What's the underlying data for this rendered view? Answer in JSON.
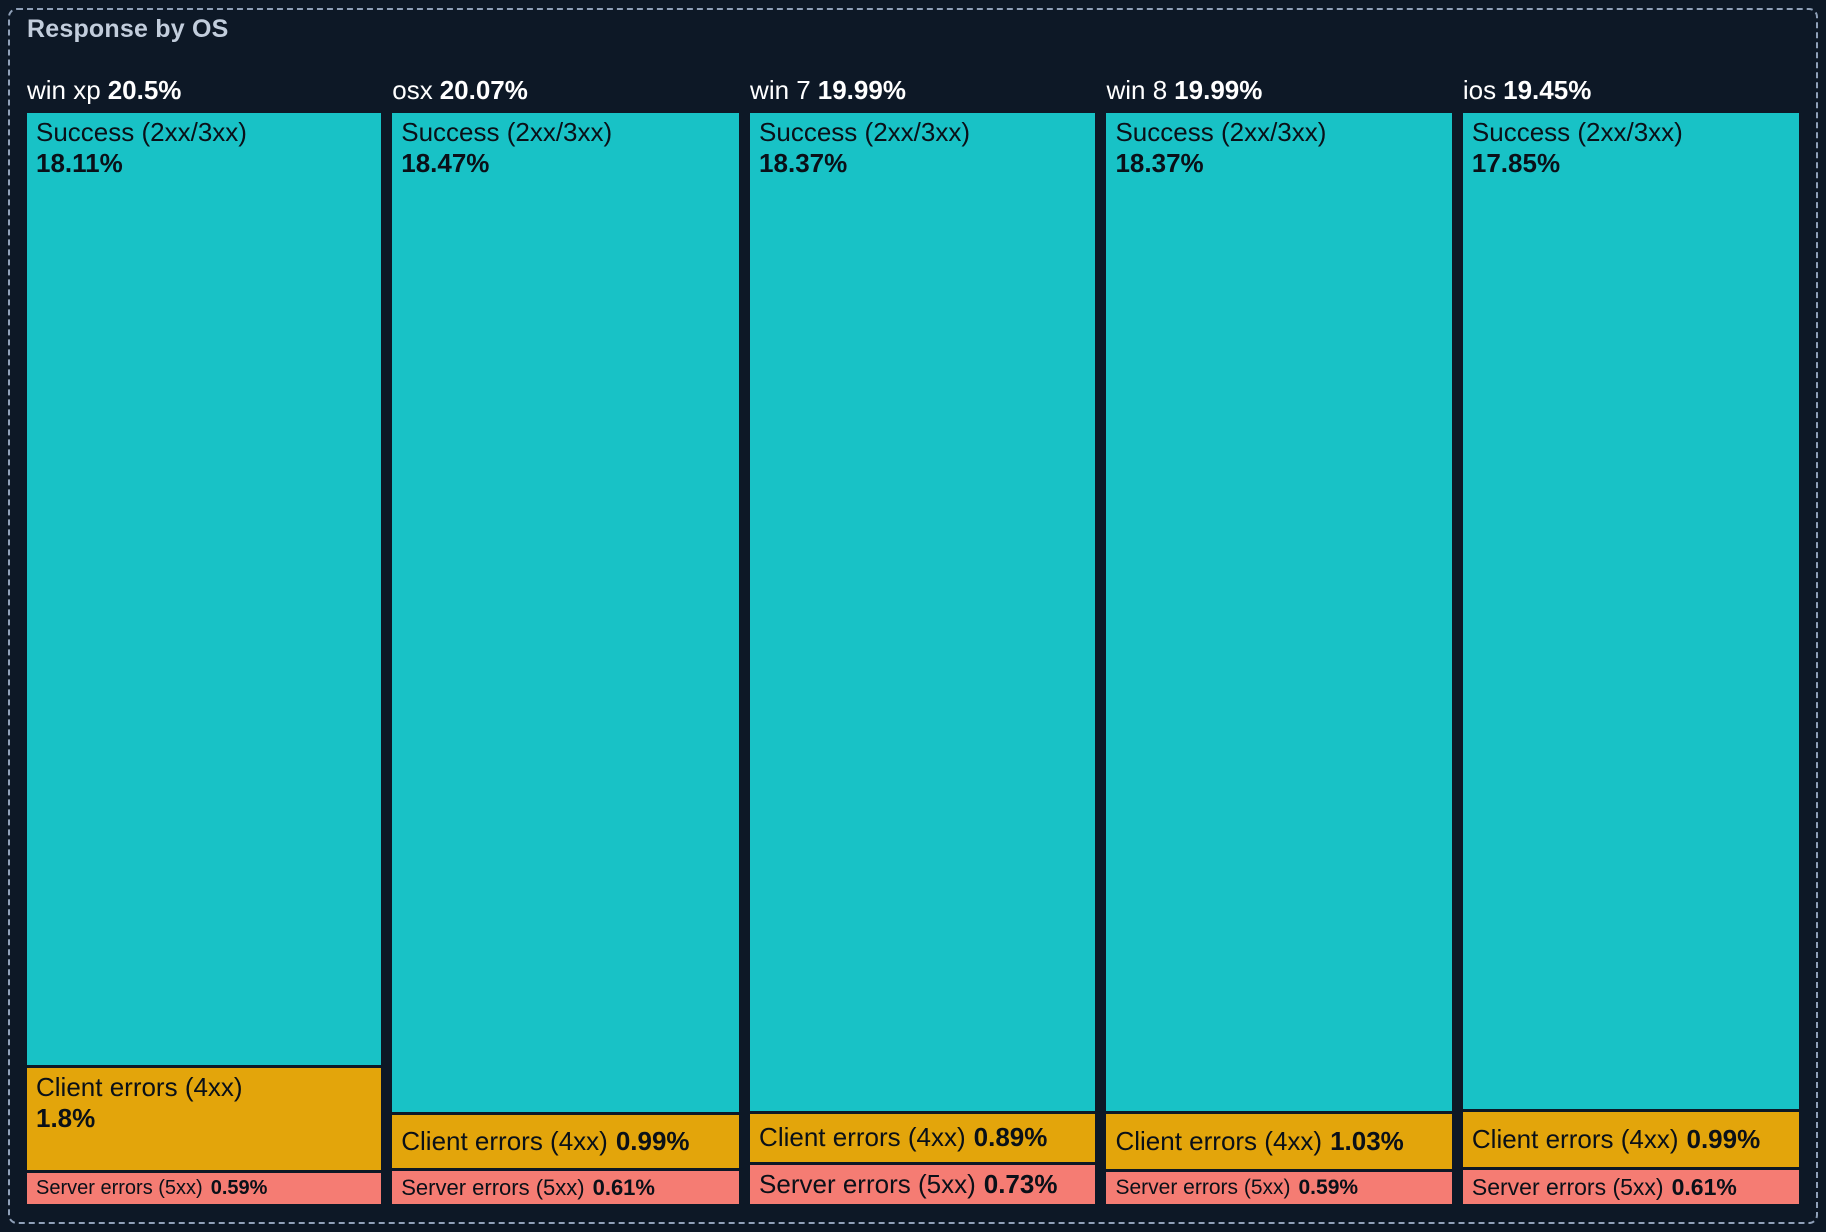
{
  "panel": {
    "title": "Response by OS"
  },
  "colors": {
    "background": "#0D1826",
    "panel_border": "#8FA0B8",
    "title_text": "#C2CDDC",
    "header_text": "#FFFFFF",
    "cell_text": "#0A1018",
    "success": "#18C2C6",
    "client": "#E3A50B",
    "server": "#F57C73"
  },
  "chart_data": {
    "type": "treemap",
    "title": "Response by OS",
    "group_by": "os",
    "unit": "%",
    "layout": "vertical-columns",
    "legend_position": "none",
    "grid": false,
    "columns": [
      {
        "name": "win xp",
        "total_label": "20.5%",
        "total_value": 20.5,
        "segments": [
          {
            "label": "Success (2xx/3xx)",
            "value": 18.11,
            "value_label": "18.11%",
            "kind": "success"
          },
          {
            "label": "Client errors (4xx)",
            "value": 1.8,
            "value_label": "1.8%",
            "kind": "client"
          },
          {
            "label": "Server errors (5xx)",
            "value": 0.59,
            "value_label": "0.59%",
            "kind": "server"
          }
        ]
      },
      {
        "name": "osx",
        "total_label": "20.07%",
        "total_value": 20.07,
        "segments": [
          {
            "label": "Success (2xx/3xx)",
            "value": 18.47,
            "value_label": "18.47%",
            "kind": "success"
          },
          {
            "label": "Client errors (4xx)",
            "value": 0.99,
            "value_label": "0.99%",
            "kind": "client"
          },
          {
            "label": "Server errors (5xx)",
            "value": 0.61,
            "value_label": "0.61%",
            "kind": "server"
          }
        ]
      },
      {
        "name": "win 7",
        "total_label": "19.99%",
        "total_value": 19.99,
        "segments": [
          {
            "label": "Success (2xx/3xx)",
            "value": 18.37,
            "value_label": "18.37%",
            "kind": "success"
          },
          {
            "label": "Client errors (4xx)",
            "value": 0.89,
            "value_label": "0.89%",
            "kind": "client"
          },
          {
            "label": "Server errors (5xx)",
            "value": 0.73,
            "value_label": "0.73%",
            "kind": "server"
          }
        ]
      },
      {
        "name": "win 8",
        "total_label": "19.99%",
        "total_value": 19.99,
        "segments": [
          {
            "label": "Success (2xx/3xx)",
            "value": 18.37,
            "value_label": "18.37%",
            "kind": "success"
          },
          {
            "label": "Client errors (4xx)",
            "value": 1.03,
            "value_label": "1.03%",
            "kind": "client"
          },
          {
            "label": "Server errors (5xx)",
            "value": 0.59,
            "value_label": "0.59%",
            "kind": "server"
          }
        ]
      },
      {
        "name": "ios",
        "total_label": "19.45%",
        "total_value": 19.45,
        "segments": [
          {
            "label": "Success (2xx/3xx)",
            "value": 17.85,
            "value_label": "17.85%",
            "kind": "success"
          },
          {
            "label": "Client errors (4xx)",
            "value": 0.99,
            "value_label": "0.99%",
            "kind": "client"
          },
          {
            "label": "Server errors (5xx)",
            "value": 0.61,
            "value_label": "0.61%",
            "kind": "server"
          }
        ]
      }
    ]
  }
}
